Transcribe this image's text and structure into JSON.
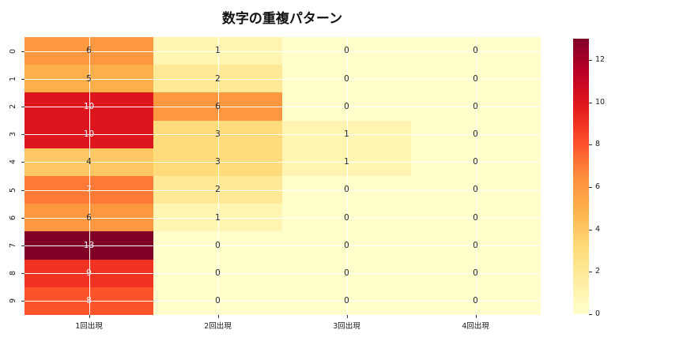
{
  "title": "数字の重複パターン",
  "chart_data": {
    "type": "heatmap",
    "title": "数字の重複パターン",
    "x_tick_labels": [
      "1回出現",
      "2回出現",
      "3回出現",
      "4回出現"
    ],
    "y_tick_labels": [
      "0",
      "1",
      "2",
      "3",
      "4",
      "5",
      "6",
      "7",
      "8",
      "9"
    ],
    "values": [
      [
        6,
        1,
        0,
        0
      ],
      [
        5,
        2,
        0,
        0
      ],
      [
        10,
        6,
        0,
        0
      ],
      [
        10,
        3,
        1,
        0
      ],
      [
        4,
        3,
        1,
        0
      ],
      [
        7,
        2,
        0,
        0
      ],
      [
        6,
        1,
        0,
        0
      ],
      [
        13,
        0,
        0,
        0
      ],
      [
        9,
        0,
        0,
        0
      ],
      [
        8,
        0,
        0,
        0
      ]
    ],
    "vmin": 0,
    "vmax": 13,
    "colormap_name": "YlOrRd",
    "colormap_stops": [
      "#ffffcc",
      "#ffeda0",
      "#fed976",
      "#feb24c",
      "#fd8d3c",
      "#fc4e2a",
      "#e31a1c",
      "#bd0026",
      "#800026"
    ],
    "colorbar_ticks": [
      0,
      2,
      4,
      6,
      8,
      10,
      12
    ],
    "grid": true,
    "grid_color": "#ffffff",
    "annotation_color_dark_bg": "#ffffff",
    "annotation_color_light_bg": "#262626",
    "legend_position": "right-colorbar"
  }
}
